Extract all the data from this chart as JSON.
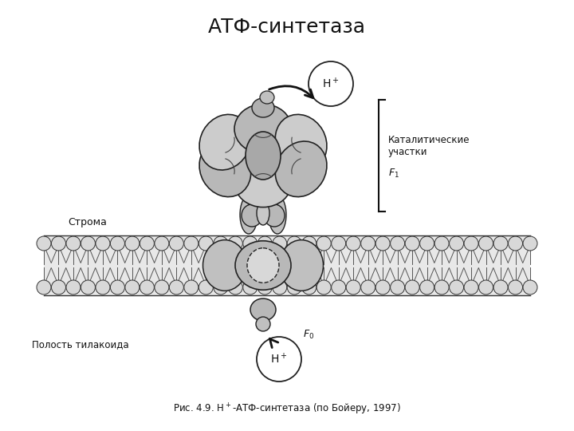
{
  "title": "АТФ-синтетаза",
  "title_fontsize": 18,
  "bg_color": "#ffffff",
  "protein_fill": "#c8c8c8",
  "protein_outline": "#222222",
  "membrane_fill": "#e0e0e0",
  "membrane_outline": "#333333",
  "arrow_color": "#111111",
  "text_color": "#111111",
  "label_stroma": "Строма",
  "label_thylakoid": "Полость тилакоида",
  "caption": "Рис. 4.9. Н⁺-АТФ-синтетаза (по Бойеру, 1997)"
}
